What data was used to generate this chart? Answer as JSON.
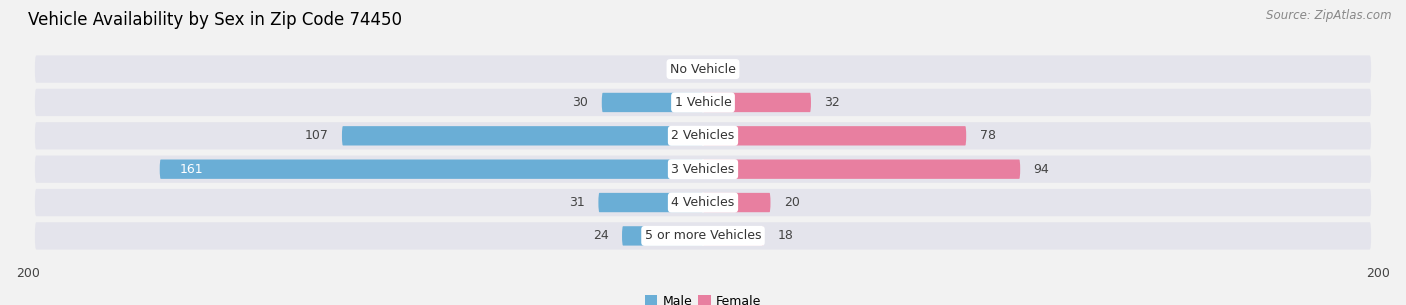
{
  "title": "Vehicle Availability by Sex in Zip Code 74450",
  "source": "Source: ZipAtlas.com",
  "categories": [
    "No Vehicle",
    "1 Vehicle",
    "2 Vehicles",
    "3 Vehicles",
    "4 Vehicles",
    "5 or more Vehicles"
  ],
  "male_values": [
    0,
    30,
    107,
    161,
    31,
    24
  ],
  "female_values": [
    0,
    32,
    78,
    94,
    20,
    18
  ],
  "male_color": "#6aaed6",
  "female_color": "#e87fa0",
  "axis_max": 200,
  "background_color": "#f2f2f2",
  "row_bg_color": "#e4e4ec",
  "row_bg_color2": "#ebebf2",
  "title_fontsize": 12,
  "source_fontsize": 8.5,
  "label_fontsize": 9,
  "value_fontsize": 9,
  "legend_fontsize": 9,
  "axis_label_fontsize": 9,
  "male_label_white_threshold": 150
}
